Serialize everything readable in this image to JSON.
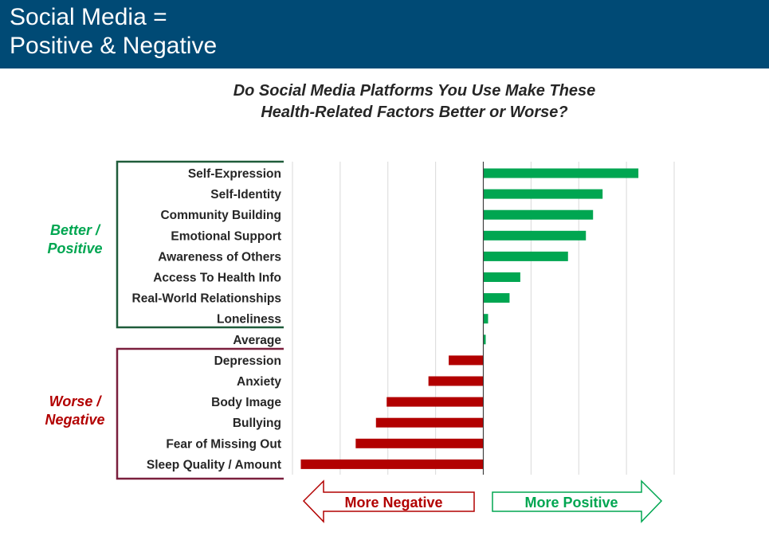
{
  "header": {
    "title_line1": "Social Media =",
    "title_line2": "Positive & Negative",
    "bg_color": "#004a75"
  },
  "chart_data": {
    "type": "bar",
    "orientation": "horizontal",
    "title_line1": "Do Social Media Platforms You Use Make These",
    "title_line2": "Health-Related Factors Better or Worse?",
    "categories": [
      "Self-Expression",
      "Self-Identity",
      "Community Building",
      "Emotional Support",
      "Awareness of Others",
      "Access To Health Info",
      "Real-World Relationships",
      "Loneliness",
      "Average",
      "Depression",
      "Anxiety",
      "Body Image",
      "Bullying",
      "Fear of Missing Out",
      "Sleep Quality / Amount"
    ],
    "values": [
      0.65,
      0.5,
      0.46,
      0.43,
      0.355,
      0.155,
      0.11,
      0.02,
      0.01,
      -0.145,
      -0.23,
      -0.405,
      -0.45,
      -0.535,
      -0.765
    ],
    "xlim": [
      -0.8,
      0.8
    ],
    "grid": true,
    "positive_color": "#00a651",
    "negative_color": "#b20000",
    "groups": [
      {
        "label_line1": "Better /",
        "label_line2": "Positive",
        "color": "#00a651",
        "border_color": "#1f5c3a"
      },
      {
        "label_line1": "Worse /",
        "label_line2": "Negative",
        "color": "#b20000",
        "border_color": "#7a1f3d"
      }
    ],
    "arrows": {
      "negative_label": "More Negative",
      "positive_label": "More Positive"
    }
  }
}
